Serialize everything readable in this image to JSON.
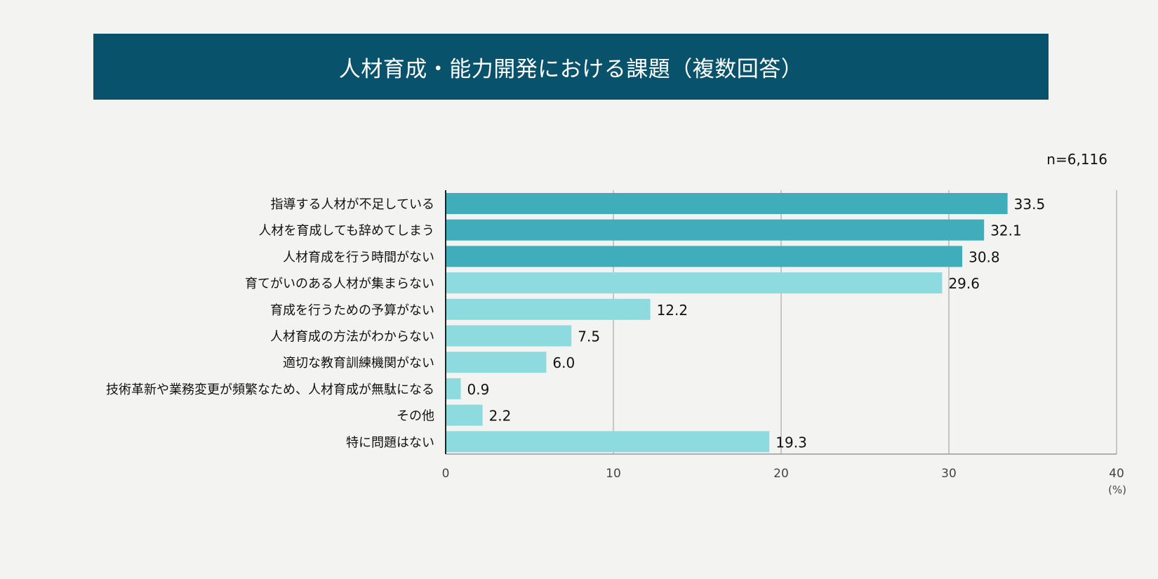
{
  "chart_data": {
    "type": "bar",
    "orientation": "horizontal",
    "title": "人材育成・能力開発における課題（複数回答）",
    "sample_size": "n=6,116",
    "unit_label": "(%)",
    "xlim": [
      0,
      40
    ],
    "x_ticks": [
      "0",
      "10",
      "20",
      "30",
      "40"
    ],
    "grid": true,
    "categories": [
      "指導する人材が不足している",
      "人材を育成しても辞めてしまう",
      "人材育成を行う時間がない",
      "育てがいのある人材が集まらない",
      "育成を行うための予算がない",
      "人材育成の方法がわからない",
      "適切な教育訓練機関がない",
      "技術革新や業務変更が頻繁なため、人材育成が無駄になる",
      "その他",
      "特に問題はない"
    ],
    "values": [
      33.5,
      32.1,
      30.8,
      29.6,
      12.2,
      7.5,
      6.0,
      0.9,
      2.2,
      19.3
    ],
    "value_labels": [
      "33.5",
      "32.1",
      "30.8",
      "29.6",
      "12.2",
      "7.5",
      "6.0",
      "0.9",
      "2.2",
      "19.3"
    ],
    "highlighted_top": 3,
    "colors": {
      "highlight": "#40adbb",
      "normal": "#8ddadf",
      "title_bg": "#08526b",
      "background": "#f3f4f2",
      "grid": "#999999"
    }
  }
}
